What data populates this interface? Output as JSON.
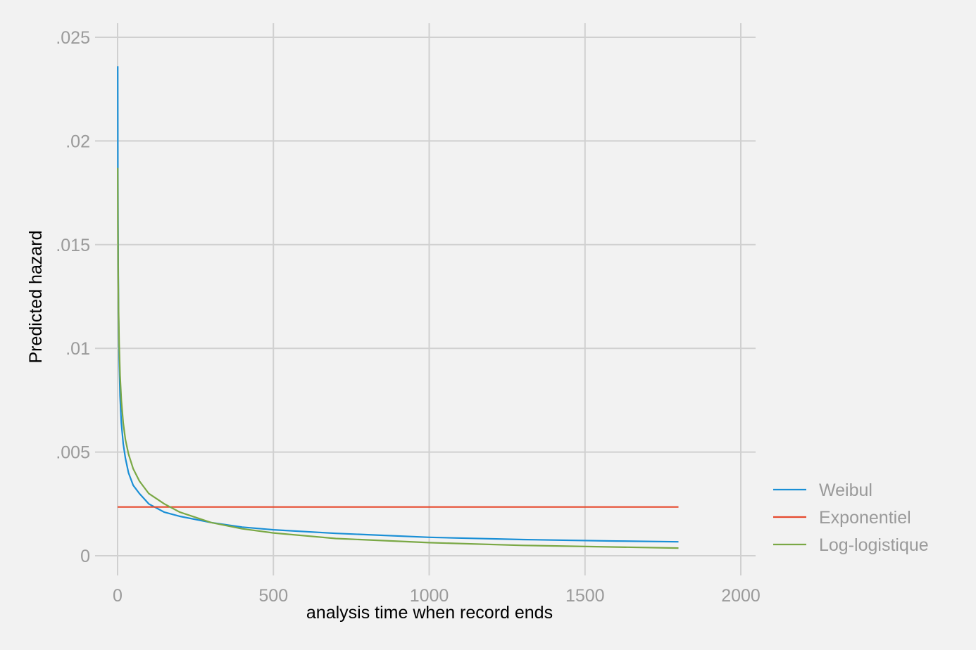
{
  "chart_data": {
    "type": "line",
    "title": "",
    "xlabel": "analysis time when record ends",
    "ylabel": "Predicted hazard",
    "xlim": [
      -60,
      2050
    ],
    "ylim": [
      -0.001,
      0.0255
    ],
    "x_ticks": [
      0,
      500,
      1000,
      1500,
      2000
    ],
    "x_tick_labels": [
      "0",
      "500",
      "1000",
      "1500",
      "2000"
    ],
    "y_ticks": [
      0,
      0.005,
      0.01,
      0.015,
      0.02,
      0.025
    ],
    "y_tick_labels": [
      "0",
      ".005",
      ".01",
      ".015",
      ".02",
      ".025"
    ],
    "grid": true,
    "legend_position": "right",
    "series": [
      {
        "name": "Weibul",
        "color": "#1a8fd6",
        "x": [
          0.5,
          1,
          2,
          3,
          5,
          8,
          12,
          18,
          25,
          35,
          50,
          70,
          100,
          150,
          200,
          300,
          400,
          500,
          700,
          1000,
          1300,
          1600,
          1800
        ],
        "y": [
          0.0236,
          0.0185,
          0.014,
          0.0118,
          0.0095,
          0.0077,
          0.0064,
          0.0054,
          0.0047,
          0.004,
          0.0034,
          0.003,
          0.0025,
          0.0021,
          0.0019,
          0.0016,
          0.00138,
          0.00125,
          0.00108,
          0.00089,
          0.00078,
          0.00071,
          0.00067
        ]
      },
      {
        "name": "Exponentiel",
        "color": "#e64a2e",
        "x": [
          0,
          1800
        ],
        "y": [
          0.00235,
          0.00235
        ]
      },
      {
        "name": "Log-logistique",
        "color": "#7aa845",
        "x": [
          0.5,
          1,
          2,
          3,
          5,
          8,
          12,
          18,
          25,
          35,
          50,
          70,
          100,
          150,
          200,
          300,
          400,
          500,
          700,
          1000,
          1300,
          1600,
          1800
        ],
        "y": [
          0.0187,
          0.016,
          0.0135,
          0.012,
          0.0102,
          0.0087,
          0.0075,
          0.0064,
          0.0056,
          0.0049,
          0.0042,
          0.0036,
          0.003,
          0.0025,
          0.0021,
          0.0016,
          0.0013,
          0.0011,
          0.00083,
          0.00063,
          0.0005,
          0.00042,
          0.00037
        ]
      }
    ]
  }
}
